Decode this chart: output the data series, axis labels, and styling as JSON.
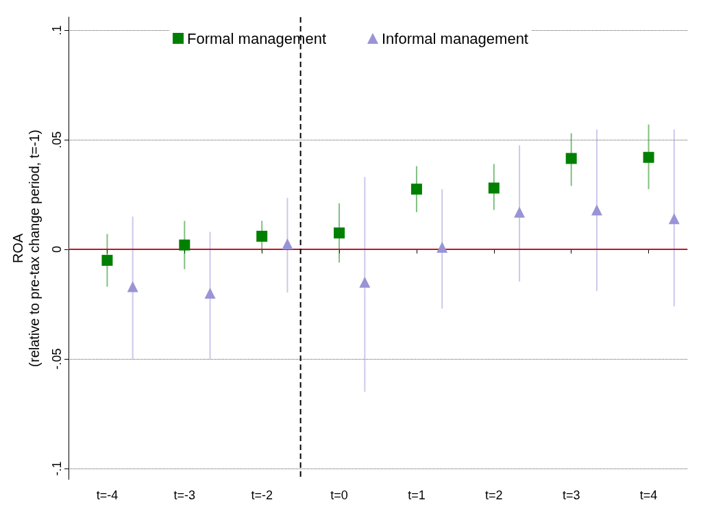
{
  "chart_data": {
    "type": "scatter",
    "ylabel": "ROA\n(relative to pre-tax change period, t=-1)",
    "categories": [
      "t=-4",
      "t=-3",
      "t=-2",
      "t=0",
      "t=1",
      "t=2",
      "t=3",
      "t=4"
    ],
    "series": [
      {
        "name": "Formal management",
        "color": "#008000",
        "marker": "square",
        "values": [
          -0.005,
          0.002,
          0.006,
          0.0075,
          0.0275,
          0.028,
          0.0415,
          0.042
        ],
        "errors": [
          [
            -0.017,
            0.007
          ],
          [
            -0.009,
            0.013
          ],
          [
            -0.001,
            0.013
          ],
          [
            -0.006,
            0.021
          ],
          [
            0.017,
            0.038
          ],
          [
            0.018,
            0.039
          ],
          [
            0.029,
            0.053
          ],
          [
            0.0275,
            0.057
          ]
        ]
      },
      {
        "name": "Informal management",
        "color": "#9a94d6",
        "marker": "triangle",
        "values": [
          -0.017,
          -0.02,
          0.0025,
          -0.015,
          0.001,
          0.017,
          0.018,
          0.014
        ],
        "errors": [
          [
            -0.05,
            0.015
          ],
          [
            -0.05,
            0.008
          ],
          [
            -0.0197,
            0.0235
          ],
          [
            -0.065,
            0.033
          ],
          [
            -0.027,
            0.0275
          ],
          [
            -0.0147,
            0.0475
          ],
          [
            -0.019,
            0.0547
          ],
          [
            -0.026,
            0.0547
          ]
        ]
      }
    ],
    "ylim": [
      -0.105,
      0.106
    ],
    "yticks": [
      {
        "value": -0.1,
        "label": "-.1"
      },
      {
        "value": -0.05,
        "label": "-.05"
      },
      {
        "value": 0,
        "label": "0"
      },
      {
        "value": 0.05,
        "label": ".05"
      },
      {
        "value": 0.1,
        "label": ".1"
      }
    ],
    "grid": "y",
    "legend": "top",
    "ref_lines": [
      {
        "axis": "y",
        "value": 0,
        "color": "#c8102e",
        "line_style": "solid"
      },
      {
        "axis": "x",
        "value": "t=0",
        "color": "#000000",
        "line_style": "dashed"
      }
    ]
  }
}
